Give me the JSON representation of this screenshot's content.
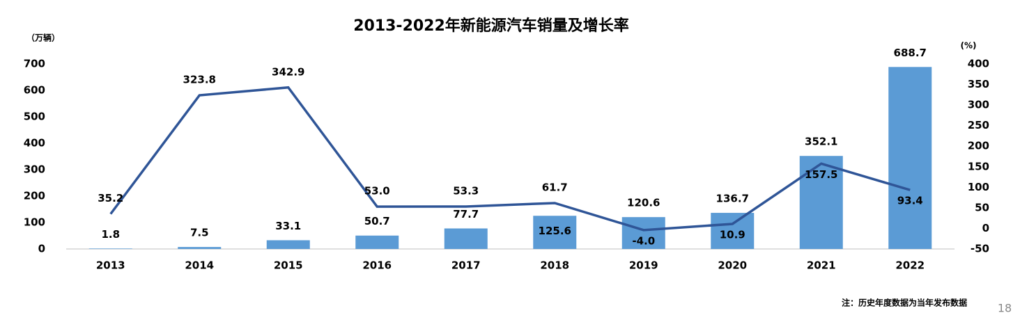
{
  "chart_data": {
    "type": "bar_line",
    "title": "2013-2022年新能源汽车销量及增长率",
    "y_label": "（万辆）",
    "y2_label": "(%)",
    "categories": [
      "2013",
      "2014",
      "2015",
      "2016",
      "2017",
      "2018",
      "2019",
      "2020",
      "2021",
      "2022"
    ],
    "series": [
      {
        "name": "销量",
        "type": "bar",
        "color": "#5b9bd5",
        "values": [
          1.8,
          7.5,
          33.1,
          50.7,
          77.7,
          125.6,
          120.6,
          136.7,
          352.1,
          688.7
        ]
      },
      {
        "name": "增长率",
        "type": "line",
        "axis": "y2",
        "color": "#2f5597",
        "values": [
          35.2,
          323.8,
          342.9,
          53,
          53.3,
          61.7,
          -4,
          10.9,
          157.5,
          93.4
        ],
        "value_labels": [
          "35.2",
          "323.8",
          "342.9",
          "53.0",
          "53.3",
          "61.7",
          "-4.0",
          "10.9",
          "157.5",
          "93.4"
        ]
      }
    ],
    "ylim": [
      0,
      700
    ],
    "yticks": [
      0,
      100,
      200,
      300,
      400,
      500,
      600,
      700
    ],
    "y2lim": [
      -50,
      400
    ],
    "y2ticks": [
      -50,
      0,
      50,
      100,
      150,
      200,
      250,
      300,
      350,
      400
    ],
    "note": "注：历史年度数据为当年发布数据"
  },
  "page_number": "18"
}
